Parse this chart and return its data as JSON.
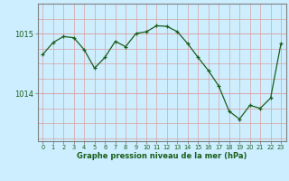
{
  "x": [
    0,
    1,
    2,
    3,
    4,
    5,
    6,
    7,
    8,
    9,
    10,
    11,
    12,
    13,
    14,
    15,
    16,
    17,
    18,
    19,
    20,
    21,
    22,
    23
  ],
  "y": [
    1014.65,
    1014.85,
    1014.95,
    1014.93,
    1014.73,
    1014.42,
    1014.6,
    1014.87,
    1014.78,
    1015.0,
    1015.03,
    1015.13,
    1015.12,
    1015.03,
    1014.83,
    1014.6,
    1014.38,
    1014.12,
    1013.7,
    1013.57,
    1013.8,
    1013.75,
    1013.92,
    1014.83
  ],
  "line_color": "#1a5e1a",
  "marker": "+",
  "bg_color": "#cceeff",
  "grid_color_v": "#dda0a0",
  "grid_color_h": "#dda0a0",
  "border_color": "#808080",
  "xlabel": "Graphe pression niveau de la mer (hPa)",
  "xlabel_color": "#1a5e1a",
  "tick_color": "#1a5e1a",
  "yticks": [
    1014,
    1015
  ],
  "ylim": [
    1013.2,
    1015.5
  ],
  "xlim": [
    -0.5,
    23.5
  ]
}
